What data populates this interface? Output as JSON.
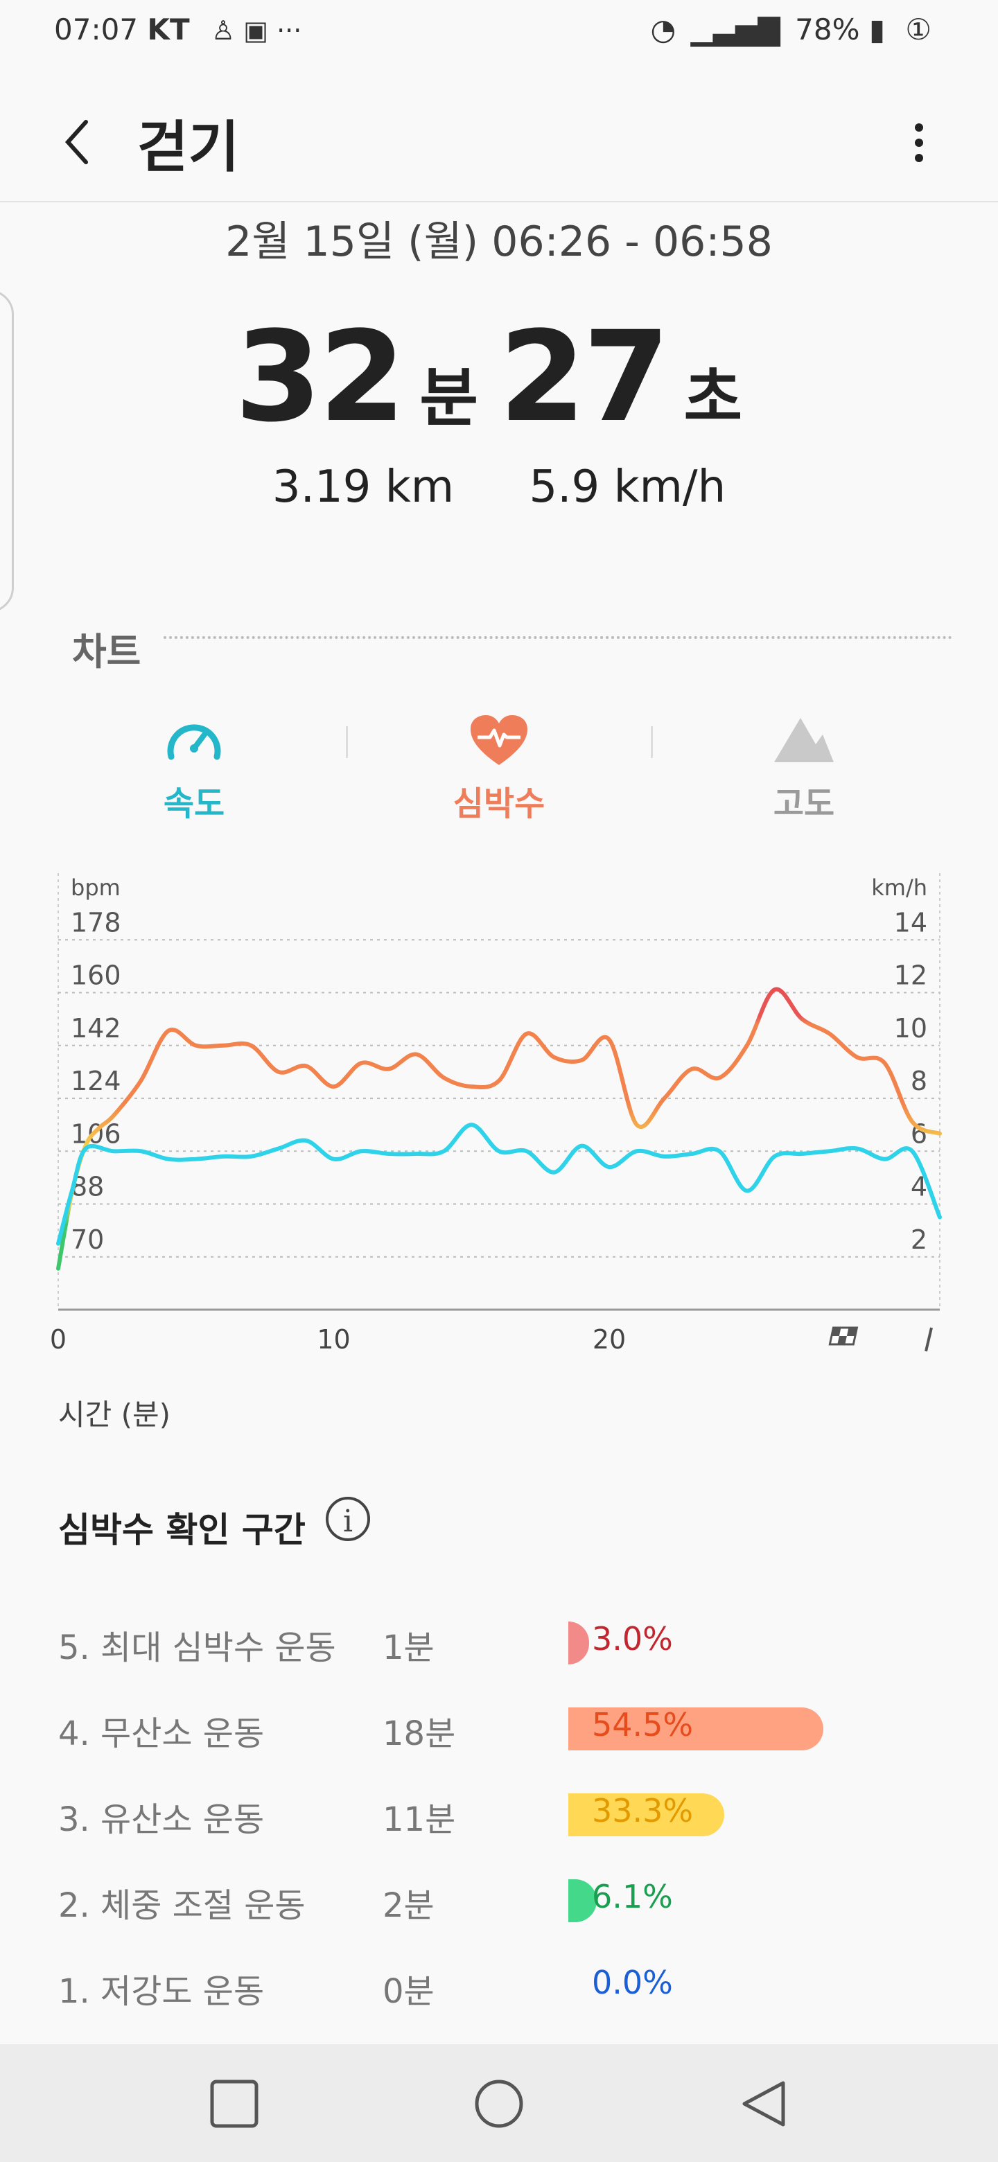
{
  "status_bar": {
    "time": "07:07",
    "carrier": "KT",
    "battery": "78%",
    "notice": "①"
  },
  "app_bar": {
    "title": "걷기"
  },
  "summary": {
    "date": "2월 15일 (월) 06:26 - 06:58",
    "minutes": "32",
    "minutes_unit": "분",
    "seconds": "27",
    "seconds_unit": "초",
    "distance": "3.19 km",
    "speed": "5.9 km/h"
  },
  "chart_section": {
    "title": "차트"
  },
  "tabs": [
    {
      "label": "속도",
      "color": "#24b6c9",
      "icon": "speedometer-icon"
    },
    {
      "label": "심박수",
      "color": "#f07d5a",
      "icon": "heart-pulse-icon"
    },
    {
      "label": "고도",
      "color": "#9a9a9a",
      "icon": "mountain-icon"
    }
  ],
  "chart_data": {
    "type": "line",
    "left_unit": "bpm",
    "right_unit": "km/h",
    "xlabel": "시간 (분)",
    "x_ticks": [
      "0",
      "10",
      "20"
    ],
    "xlim": [
      0,
      32
    ],
    "y_left_ticks": [
      70,
      88,
      106,
      124,
      142,
      160,
      178
    ],
    "y_right_ticks": [
      2,
      4,
      6,
      8,
      10,
      12,
      14
    ],
    "ylim_left": [
      52,
      196
    ],
    "ylim_right": [
      0,
      16
    ],
    "series": [
      {
        "name": "심박수",
        "axis": "left",
        "x": [
          0,
          0.5,
          1,
          1.5,
          2,
          3,
          4,
          5,
          6,
          7,
          8,
          9,
          10,
          11,
          12,
          13,
          14,
          15,
          16,
          17,
          18,
          19,
          20,
          21,
          22,
          23,
          24,
          25,
          26,
          27,
          28,
          29,
          30,
          31,
          32
        ],
        "values": [
          66,
          92,
          108,
          114,
          118,
          130,
          147,
          142,
          142,
          142,
          133,
          135,
          128,
          136,
          134,
          139,
          131,
          128,
          130,
          146,
          138,
          137,
          144,
          115,
          124,
          134,
          131,
          142,
          161,
          151,
          146,
          138,
          136,
          116,
          112
        ]
      },
      {
        "name": "속도",
        "axis": "right",
        "x": [
          0,
          0.5,
          1,
          2,
          3,
          4,
          5,
          6,
          7,
          8,
          9,
          10,
          11,
          12,
          13,
          14,
          15,
          16,
          17,
          18,
          19,
          20,
          21,
          22,
          23,
          24,
          25,
          26,
          27,
          28,
          29,
          30,
          31,
          32
        ],
        "values": [
          2.5,
          4.5,
          6.1,
          6.0,
          6.0,
          5.7,
          5.7,
          5.8,
          5.8,
          6.1,
          6.4,
          5.7,
          6.0,
          5.9,
          5.9,
          6.0,
          7.0,
          6.0,
          6.0,
          5.2,
          6.2,
          5.4,
          6.0,
          5.8,
          5.9,
          6.0,
          4.5,
          5.8,
          5.9,
          6.0,
          6.1,
          5.7,
          6.0,
          3.5
        ]
      }
    ]
  },
  "zones": {
    "title": "심박수 확인 구간",
    "info_icon": "i",
    "rows": [
      {
        "name": "5. 최대 심박수 운동",
        "time": "1분",
        "percent": "3.0%",
        "fraction": 0.03,
        "bar_color": "#f28a8a",
        "text_color": "#c2262e"
      },
      {
        "name": "4. 무산소 운동",
        "time": "18분",
        "percent": "54.5%",
        "fraction": 0.545,
        "bar_color": "#ffa282",
        "text_color": "#e74c1c"
      },
      {
        "name": "3. 유산소 운동",
        "time": "11분",
        "percent": "33.3%",
        "fraction": 0.333,
        "bar_color": "#ffd955",
        "text_color": "#e39a00"
      },
      {
        "name": "2. 체중 조절 운동",
        "time": "2분",
        "percent": "6.1%",
        "fraction": 0.061,
        "bar_color": "#44d98a",
        "text_color": "#1a9e4f"
      },
      {
        "name": "1. 저강도 운동",
        "time": "0분",
        "percent": "0.0%",
        "fraction": 0.0,
        "bar_color": "#3b82f6",
        "text_color": "#1a5fd6"
      }
    ]
  }
}
